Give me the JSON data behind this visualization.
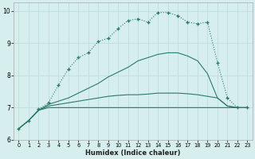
{
  "bg_color": "#d7eeee",
  "line_color": "#2a7a6a",
  "grid_color": "#c0dede",
  "xlabel": "Humidex (Indice chaleur)",
  "xlim": [
    -0.5,
    23.5
  ],
  "ylim": [
    6,
    10.25
  ],
  "yticks": [
    6,
    7,
    8,
    9,
    10
  ],
  "xticks": [
    0,
    1,
    2,
    3,
    4,
    5,
    6,
    7,
    8,
    9,
    10,
    11,
    12,
    13,
    14,
    15,
    16,
    17,
    18,
    19,
    20,
    21,
    22,
    23
  ],
  "curve_dotted_x": [
    0,
    1,
    2,
    3,
    4,
    5,
    6,
    7,
    8,
    9,
    10,
    11,
    12,
    13,
    14,
    15,
    16,
    17,
    18,
    19,
    20,
    21,
    22,
    23
  ],
  "curve_dotted_y": [
    6.35,
    6.6,
    6.95,
    7.15,
    7.7,
    8.2,
    8.55,
    8.7,
    9.05,
    9.15,
    9.45,
    9.7,
    9.75,
    9.65,
    9.95,
    9.95,
    9.85,
    9.65,
    9.6,
    9.65,
    8.4,
    7.3,
    7.0,
    7.0
  ],
  "curve_solid1_x": [
    0,
    1,
    2,
    3,
    4,
    5,
    6,
    7,
    8,
    9,
    10,
    11,
    12,
    13,
    14,
    15,
    16,
    17,
    18,
    19,
    20,
    21,
    22,
    23
  ],
  "curve_solid1_y": [
    6.35,
    6.6,
    6.92,
    7.1,
    7.2,
    7.3,
    7.45,
    7.6,
    7.75,
    7.95,
    8.1,
    8.25,
    8.45,
    8.55,
    8.65,
    8.7,
    8.7,
    8.6,
    8.45,
    8.05,
    7.3,
    7.05,
    7.0,
    7.0
  ],
  "curve_solid2_x": [
    0,
    1,
    2,
    3,
    4,
    5,
    6,
    7,
    8,
    9,
    10,
    11,
    12,
    13,
    14,
    15,
    16,
    17,
    18,
    19,
    20,
    21,
    22,
    23
  ],
  "curve_solid2_y": [
    6.35,
    6.6,
    6.92,
    7.05,
    7.1,
    7.15,
    7.2,
    7.25,
    7.3,
    7.35,
    7.38,
    7.4,
    7.4,
    7.42,
    7.45,
    7.45,
    7.45,
    7.43,
    7.4,
    7.35,
    7.3,
    7.05,
    7.0,
    7.0
  ],
  "curve_flat_x": [
    0,
    1,
    2,
    3,
    4,
    5,
    6,
    7,
    8,
    9,
    10,
    11,
    12,
    13,
    14,
    15,
    16,
    17,
    18,
    19,
    20,
    21,
    22,
    23
  ],
  "curve_flat_y": [
    6.35,
    6.6,
    6.92,
    7.0,
    7.0,
    7.0,
    7.0,
    7.0,
    7.0,
    7.0,
    7.0,
    7.0,
    7.0,
    7.0,
    7.0,
    7.0,
    7.0,
    7.0,
    7.0,
    7.0,
    7.0,
    7.0,
    7.0,
    7.0
  ]
}
